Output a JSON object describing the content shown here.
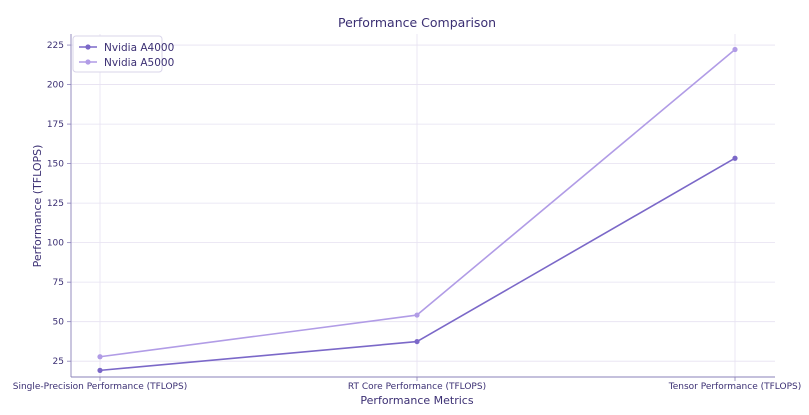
{
  "chart_data": {
    "type": "line",
    "title": "Performance Comparison",
    "xlabel": "Performance Metrics",
    "ylabel": "Performance (TFLOPS)",
    "categories": [
      "Single-Precision Performance (TFLOPS)",
      "RT Core Performance (TFLOPS)",
      "Tensor Performance (TFLOPS)"
    ],
    "series": [
      {
        "name": "Nvidia A4000",
        "values": [
          19.2,
          37.4,
          153.4
        ],
        "color": "#7b68c8"
      },
      {
        "name": "Nvidia A5000",
        "values": [
          27.8,
          54.2,
          222.2
        ],
        "color": "#b19ce6"
      }
    ],
    "ylim": [
      15,
      232
    ],
    "yticks": [
      25,
      50,
      75,
      100,
      125,
      150,
      175,
      200,
      225
    ],
    "grid": true,
    "legend_position": "top-left"
  }
}
